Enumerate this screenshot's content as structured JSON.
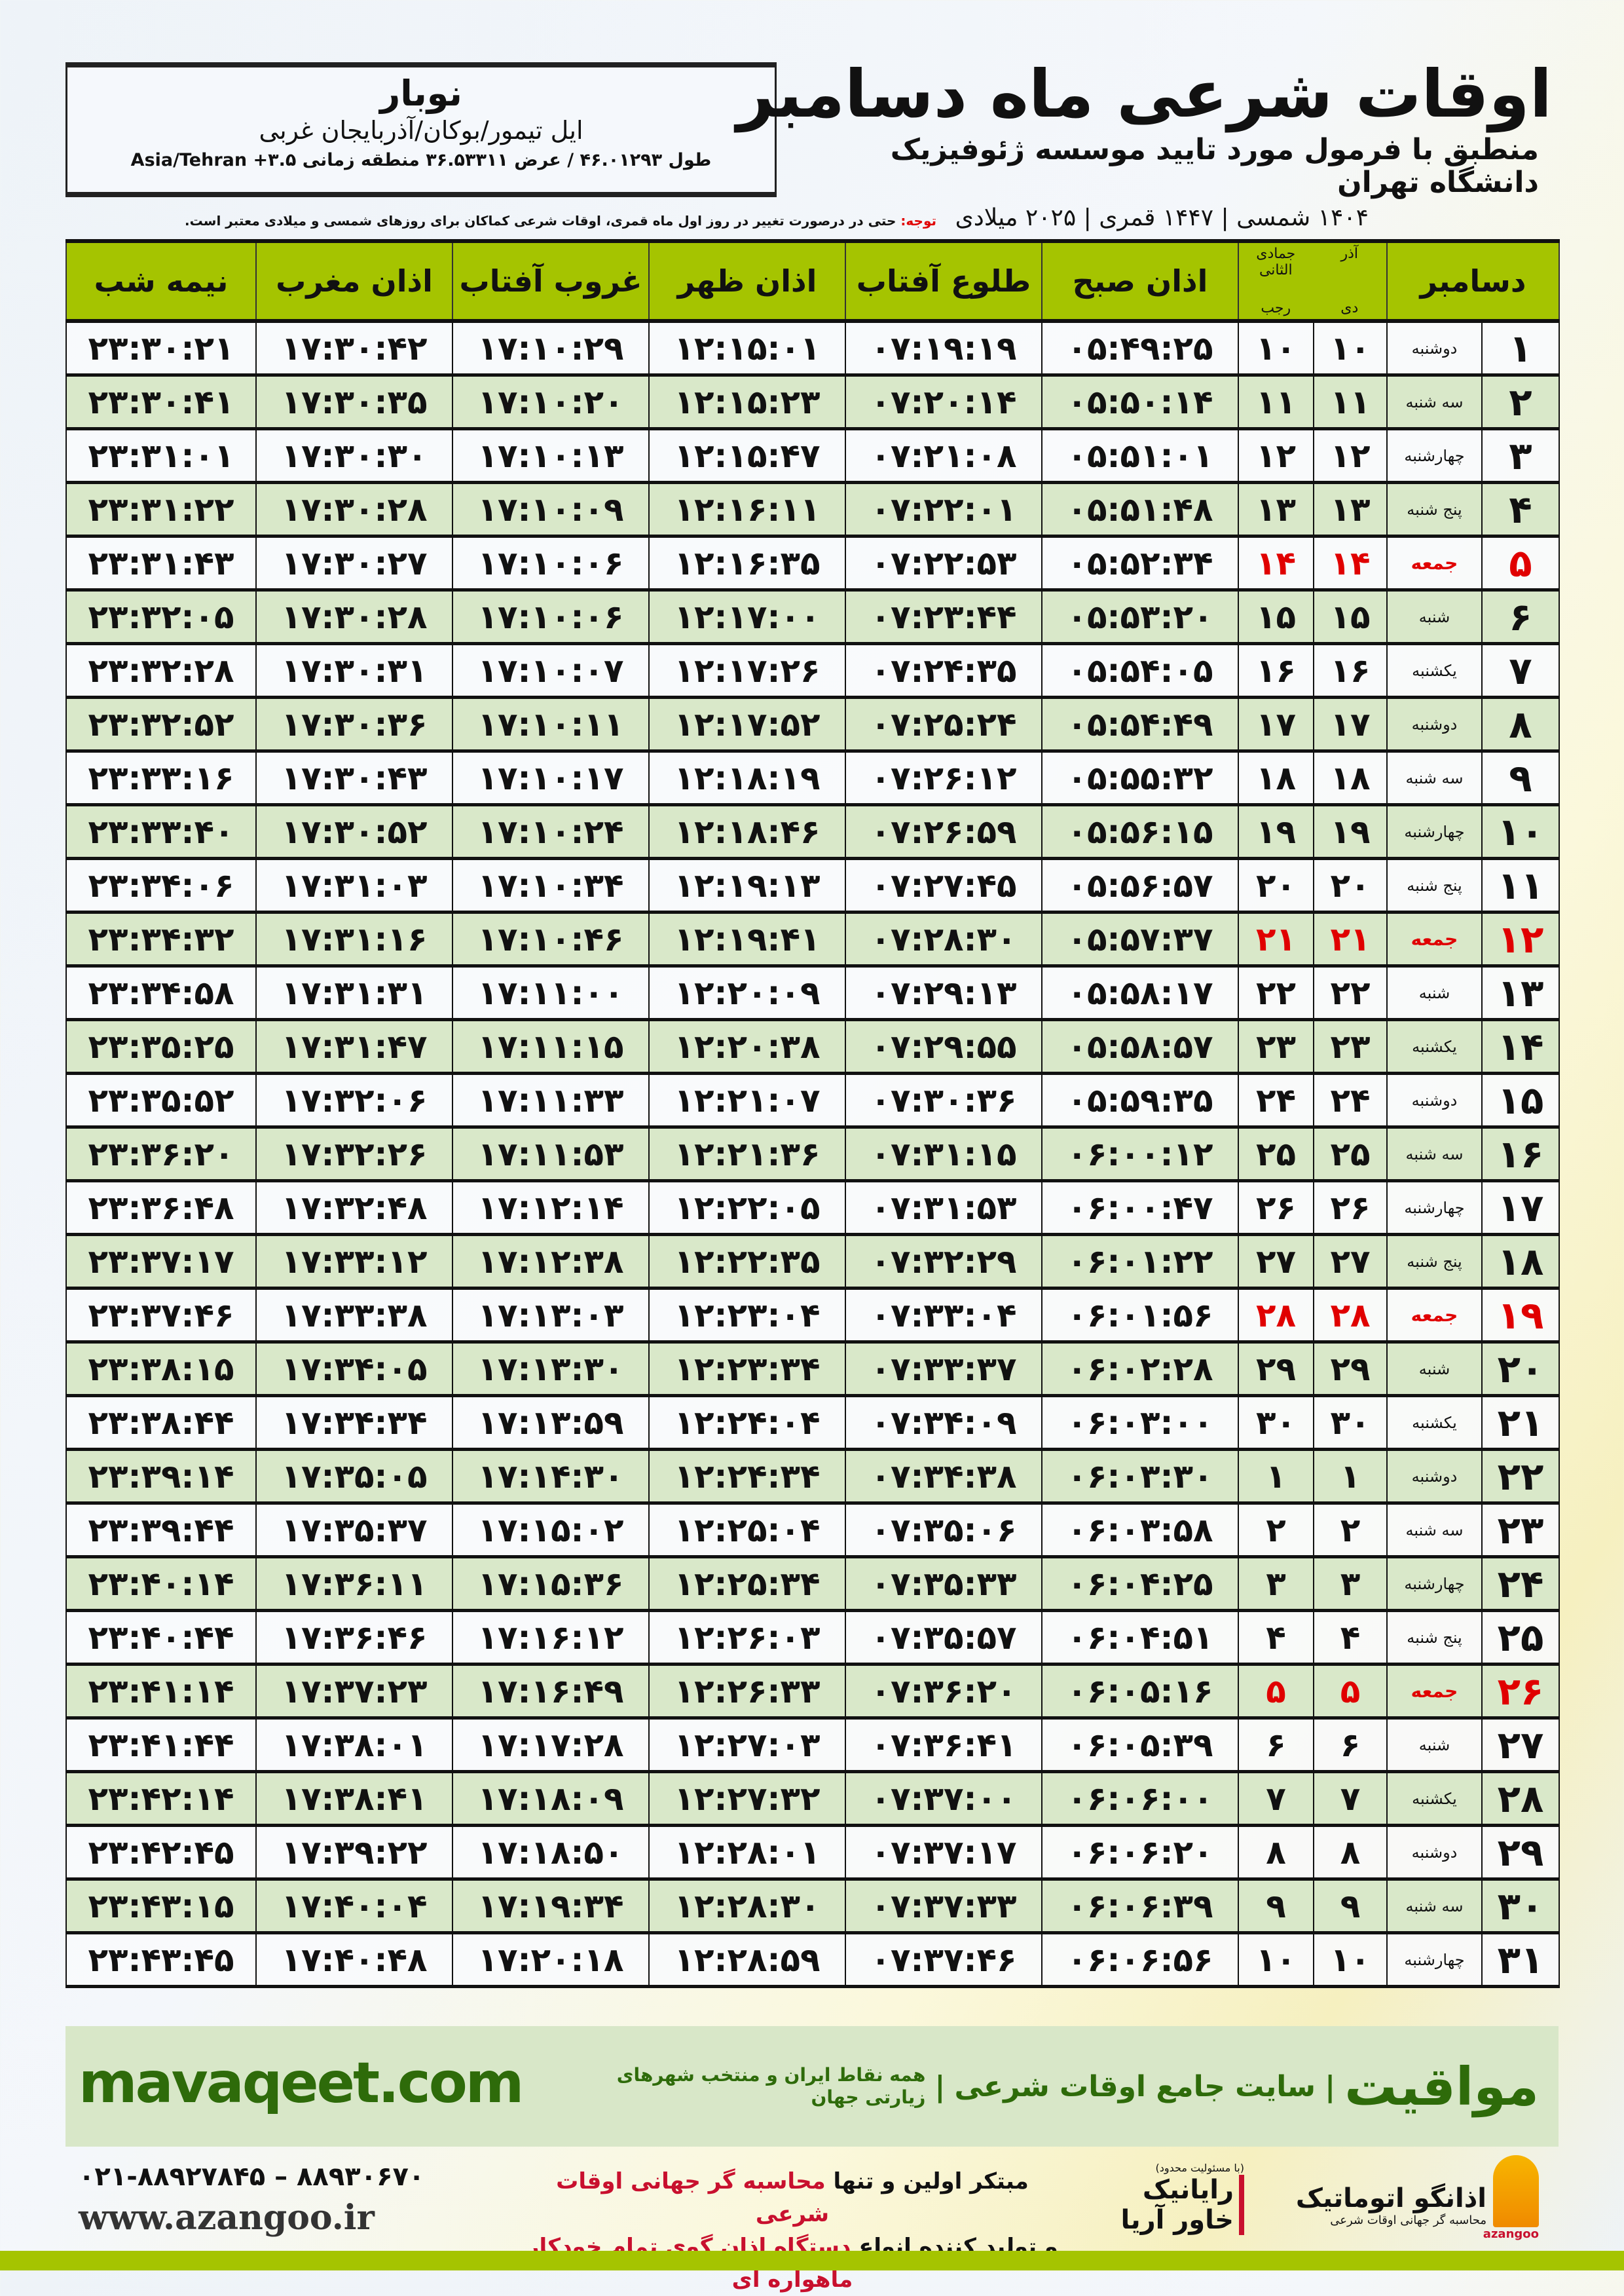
{
  "location": {
    "city": "نوبار",
    "region": "ایل تیمور/بوکان/آذربایجان غربی",
    "coords": "طول ۴۶.۰۱۲۹۳ / عرض ۳۶.۵۳۳۱۱ منطقه زمانی ۳.۵+ Asia/Tehran"
  },
  "header": {
    "title": "اوقات شرعی ماه دسامبر",
    "subtitle": "منطبق با فرمول مورد تایید موسسه ژئوفیزیک دانشگاه تهران",
    "years": "۱۴۰۴ شمسی | ۱۴۴۷ قمری | ۲۰۲۵ میلادی"
  },
  "note": {
    "label": "توجه:",
    "text": " حتی در درصورت تغییر در روز اول ماه قمری، اوقات شرعی کماکان برای روزهای شمسی و میلادی معتبر است."
  },
  "table": {
    "headers": {
      "month": "دسامبر",
      "shamsi_top": "آذر",
      "shamsi_bottom": "دی",
      "lunar_top": "جمادی الثانی",
      "lunar_bottom": "رجب",
      "fajr": "اذان صبح",
      "sunrise": "طلوع آفتاب",
      "dhuhr": "اذان ظهر",
      "sunset": "غروب آفتاب",
      "maghrib": "اذان مغرب",
      "midnight": "نیمه شب"
    },
    "friday_color": "#e00000",
    "header_color": "#a5c400",
    "rows": [
      [
        "۱",
        "دوشنبه",
        "۱۰",
        "۱۰",
        "۰۵:۴۹:۲۵",
        "۰۷:۱۹:۱۹",
        "۱۲:۱۵:۰۱",
        "۱۷:۱۰:۲۹",
        "۱۷:۳۰:۴۲",
        "۲۳:۳۰:۲۱"
      ],
      [
        "۲",
        "سه شنبه",
        "۱۱",
        "۱۱",
        "۰۵:۵۰:۱۴",
        "۰۷:۲۰:۱۴",
        "۱۲:۱۵:۲۳",
        "۱۷:۱۰:۲۰",
        "۱۷:۳۰:۳۵",
        "۲۳:۳۰:۴۱"
      ],
      [
        "۳",
        "چهارشنبه",
        "۱۲",
        "۱۲",
        "۰۵:۵۱:۰۱",
        "۰۷:۲۱:۰۸",
        "۱۲:۱۵:۴۷",
        "۱۷:۱۰:۱۳",
        "۱۷:۳۰:۳۰",
        "۲۳:۳۱:۰۱"
      ],
      [
        "۴",
        "پنج شنبه",
        "۱۳",
        "۱۳",
        "۰۵:۵۱:۴۸",
        "۰۷:۲۲:۰۱",
        "۱۲:۱۶:۱۱",
        "۱۷:۱۰:۰۹",
        "۱۷:۳۰:۲۸",
        "۲۳:۳۱:۲۲"
      ],
      [
        "۵",
        "جمعه",
        "۱۴",
        "۱۴",
        "۰۵:۵۲:۳۴",
        "۰۷:۲۲:۵۳",
        "۱۲:۱۶:۳۵",
        "۱۷:۱۰:۰۶",
        "۱۷:۳۰:۲۷",
        "۲۳:۳۱:۴۳"
      ],
      [
        "۶",
        "شنبه",
        "۱۵",
        "۱۵",
        "۰۵:۵۳:۲۰",
        "۰۷:۲۳:۴۴",
        "۱۲:۱۷:۰۰",
        "۱۷:۱۰:۰۶",
        "۱۷:۳۰:۲۸",
        "۲۳:۳۲:۰۵"
      ],
      [
        "۷",
        "یکشنبه",
        "۱۶",
        "۱۶",
        "۰۵:۵۴:۰۵",
        "۰۷:۲۴:۳۵",
        "۱۲:۱۷:۲۶",
        "۱۷:۱۰:۰۷",
        "۱۷:۳۰:۳۱",
        "۲۳:۳۲:۲۸"
      ],
      [
        "۸",
        "دوشنبه",
        "۱۷",
        "۱۷",
        "۰۵:۵۴:۴۹",
        "۰۷:۲۵:۲۴",
        "۱۲:۱۷:۵۲",
        "۱۷:۱۰:۱۱",
        "۱۷:۳۰:۳۶",
        "۲۳:۳۲:۵۲"
      ],
      [
        "۹",
        "سه شنبه",
        "۱۸",
        "۱۸",
        "۰۵:۵۵:۳۲",
        "۰۷:۲۶:۱۲",
        "۱۲:۱۸:۱۹",
        "۱۷:۱۰:۱۷",
        "۱۷:۳۰:۴۳",
        "۲۳:۳۳:۱۶"
      ],
      [
        "۱۰",
        "چهارشنبه",
        "۱۹",
        "۱۹",
        "۰۵:۵۶:۱۵",
        "۰۷:۲۶:۵۹",
        "۱۲:۱۸:۴۶",
        "۱۷:۱۰:۲۴",
        "۱۷:۳۰:۵۲",
        "۲۳:۳۳:۴۰"
      ],
      [
        "۱۱",
        "پنج شنبه",
        "۲۰",
        "۲۰",
        "۰۵:۵۶:۵۷",
        "۰۷:۲۷:۴۵",
        "۱۲:۱۹:۱۳",
        "۱۷:۱۰:۳۴",
        "۱۷:۳۱:۰۳",
        "۲۳:۳۴:۰۶"
      ],
      [
        "۱۲",
        "جمعه",
        "۲۱",
        "۲۱",
        "۰۵:۵۷:۳۷",
        "۰۷:۲۸:۳۰",
        "۱۲:۱۹:۴۱",
        "۱۷:۱۰:۴۶",
        "۱۷:۳۱:۱۶",
        "۲۳:۳۴:۳۲"
      ],
      [
        "۱۳",
        "شنبه",
        "۲۲",
        "۲۲",
        "۰۵:۵۸:۱۷",
        "۰۷:۲۹:۱۳",
        "۱۲:۲۰:۰۹",
        "۱۷:۱۱:۰۰",
        "۱۷:۳۱:۳۱",
        "۲۳:۳۴:۵۸"
      ],
      [
        "۱۴",
        "یکشنبه",
        "۲۳",
        "۲۳",
        "۰۵:۵۸:۵۷",
        "۰۷:۲۹:۵۵",
        "۱۲:۲۰:۳۸",
        "۱۷:۱۱:۱۵",
        "۱۷:۳۱:۴۷",
        "۲۳:۳۵:۲۵"
      ],
      [
        "۱۵",
        "دوشنبه",
        "۲۴",
        "۲۴",
        "۰۵:۵۹:۳۵",
        "۰۷:۳۰:۳۶",
        "۱۲:۲۱:۰۷",
        "۱۷:۱۱:۳۳",
        "۱۷:۳۲:۰۶",
        "۲۳:۳۵:۵۲"
      ],
      [
        "۱۶",
        "سه شنبه",
        "۲۵",
        "۲۵",
        "۰۶:۰۰:۱۲",
        "۰۷:۳۱:۱۵",
        "۱۲:۲۱:۳۶",
        "۱۷:۱۱:۵۳",
        "۱۷:۳۲:۲۶",
        "۲۳:۳۶:۲۰"
      ],
      [
        "۱۷",
        "چهارشنبه",
        "۲۶",
        "۲۶",
        "۰۶:۰۰:۴۷",
        "۰۷:۳۱:۵۳",
        "۱۲:۲۲:۰۵",
        "۱۷:۱۲:۱۴",
        "۱۷:۳۲:۴۸",
        "۲۳:۳۶:۴۸"
      ],
      [
        "۱۸",
        "پنج شنبه",
        "۲۷",
        "۲۷",
        "۰۶:۰۱:۲۲",
        "۰۷:۳۲:۲۹",
        "۱۲:۲۲:۳۵",
        "۱۷:۱۲:۳۸",
        "۱۷:۳۳:۱۲",
        "۲۳:۳۷:۱۷"
      ],
      [
        "۱۹",
        "جمعه",
        "۲۸",
        "۲۸",
        "۰۶:۰۱:۵۶",
        "۰۷:۳۳:۰۴",
        "۱۲:۲۳:۰۴",
        "۱۷:۱۳:۰۳",
        "۱۷:۳۳:۳۸",
        "۲۳:۳۷:۴۶"
      ],
      [
        "۲۰",
        "شنبه",
        "۲۹",
        "۲۹",
        "۰۶:۰۲:۲۸",
        "۰۷:۳۳:۳۷",
        "۱۲:۲۳:۳۴",
        "۱۷:۱۳:۳۰",
        "۱۷:۳۴:۰۵",
        "۲۳:۳۸:۱۵"
      ],
      [
        "۲۱",
        "یکشنبه",
        "۳۰",
        "۳۰",
        "۰۶:۰۳:۰۰",
        "۰۷:۳۴:۰۹",
        "۱۲:۲۴:۰۴",
        "۱۷:۱۳:۵۹",
        "۱۷:۳۴:۳۴",
        "۲۳:۳۸:۴۴"
      ],
      [
        "۲۲",
        "دوشنبه",
        "۱",
        "۱",
        "۰۶:۰۳:۳۰",
        "۰۷:۳۴:۳۸",
        "۱۲:۲۴:۳۴",
        "۱۷:۱۴:۳۰",
        "۱۷:۳۵:۰۵",
        "۲۳:۳۹:۱۴"
      ],
      [
        "۲۳",
        "سه شنبه",
        "۲",
        "۲",
        "۰۶:۰۳:۵۸",
        "۰۷:۳۵:۰۶",
        "۱۲:۲۵:۰۴",
        "۱۷:۱۵:۰۲",
        "۱۷:۳۵:۳۷",
        "۲۳:۳۹:۴۴"
      ],
      [
        "۲۴",
        "چهارشنبه",
        "۳",
        "۳",
        "۰۶:۰۴:۲۵",
        "۰۷:۳۵:۳۳",
        "۱۲:۲۵:۳۴",
        "۱۷:۱۵:۳۶",
        "۱۷:۳۶:۱۱",
        "۲۳:۴۰:۱۴"
      ],
      [
        "۲۵",
        "پنج شنبه",
        "۴",
        "۴",
        "۰۶:۰۴:۵۱",
        "۰۷:۳۵:۵۷",
        "۱۲:۲۶:۰۳",
        "۱۷:۱۶:۱۲",
        "۱۷:۳۶:۴۶",
        "۲۳:۴۰:۴۴"
      ],
      [
        "۲۶",
        "جمعه",
        "۵",
        "۵",
        "۰۶:۰۵:۱۶",
        "۰۷:۳۶:۲۰",
        "۱۲:۲۶:۳۳",
        "۱۷:۱۶:۴۹",
        "۱۷:۳۷:۲۳",
        "۲۳:۴۱:۱۴"
      ],
      [
        "۲۷",
        "شنبه",
        "۶",
        "۶",
        "۰۶:۰۵:۳۹",
        "۰۷:۳۶:۴۱",
        "۱۲:۲۷:۰۳",
        "۱۷:۱۷:۲۸",
        "۱۷:۳۸:۰۱",
        "۲۳:۴۱:۴۴"
      ],
      [
        "۲۸",
        "یکشنبه",
        "۷",
        "۷",
        "۰۶:۰۶:۰۰",
        "۰۷:۳۷:۰۰",
        "۱۲:۲۷:۳۲",
        "۱۷:۱۸:۰۹",
        "۱۷:۳۸:۴۱",
        "۲۳:۴۲:۱۴"
      ],
      [
        "۲۹",
        "دوشنبه",
        "۸",
        "۸",
        "۰۶:۰۶:۲۰",
        "۰۷:۳۷:۱۷",
        "۱۲:۲۸:۰۱",
        "۱۷:۱۸:۵۰",
        "۱۷:۳۹:۲۲",
        "۲۳:۴۲:۴۵"
      ],
      [
        "۳۰",
        "سه شنبه",
        "۹",
        "۹",
        "۰۶:۰۶:۳۹",
        "۰۷:۳۷:۳۳",
        "۱۲:۲۸:۳۰",
        "۱۷:۱۹:۳۴",
        "۱۷:۴۰:۰۴",
        "۲۳:۴۳:۱۵"
      ],
      [
        "۳۱",
        "چهارشنبه",
        "۱۰",
        "۱۰",
        "۰۶:۰۶:۵۶",
        "۰۷:۳۷:۴۶",
        "۱۲:۲۸:۵۹",
        "۱۷:۲۰:۱۸",
        "۱۷:۴۰:۴۸",
        "۲۳:۴۳:۴۵"
      ]
    ]
  },
  "promo": {
    "site": "mavaqeet.com",
    "brand": "مواقیت",
    "slogan": "سایت جامع اوقات شرعی",
    "sub": "همه نقاط ایران و منتخب شهرهای زیارتی جهان",
    "color": "#2e6b0a"
  },
  "footer": {
    "phones": "۰۲۱-۸۸۹۲۷۸۴۵ – ۸۸۹۳۰۶۷۰",
    "web": "www.azangoo.ir",
    "ad_line1_a": "مبتکر اولین و تنها ",
    "ad_line1_b": "محاسبه گر جهانی اوقات شرعی",
    "ad_line2_a": "و تولید کننده انواع ",
    "ad_line2_b": "دستگاه اذان گوی تمام خودکار ماهواره ای",
    "logo1": "رایانیک خاور آریا",
    "logo1_small": "(با مسئولیت محدود)",
    "logo2": "اذانگو اتوماتیک",
    "logo2_sub": "محاسبه گر جهانی اوقات شرعی",
    "logo2_en": "azangoo",
    "accent": "#c8102e"
  }
}
